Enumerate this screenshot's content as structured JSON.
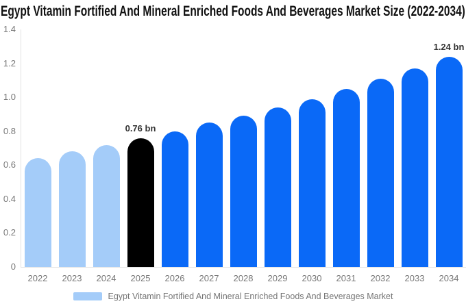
{
  "title": "Egypt Vitamin Fortified And Mineral Enriched Foods And Beverages Market Size (2022-2034)",
  "legend": {
    "label": "Egypt Vitamin Fortified And Mineral Enriched Foods And Beverages Market"
  },
  "colors": {
    "historical": "#A4CCF9",
    "base_year": "#000000",
    "forecast": "#0A69F7",
    "axis_line": "#E3E3E3",
    "tick_text": "#777777",
    "data_label_text": "#333333",
    "legend_text": "#757575",
    "title_text": "#111111"
  },
  "chart_data": {
    "type": "bar",
    "title": "Egypt Vitamin Fortified And Mineral Enriched Foods And Beverages Market Size (2022-2034)",
    "categories": [
      "2022",
      "2023",
      "2024",
      "2025",
      "2026",
      "2027",
      "2028",
      "2029",
      "2030",
      "2031",
      "2032",
      "2033",
      "2034"
    ],
    "values": [
      0.64,
      0.68,
      0.72,
      0.76,
      0.8,
      0.85,
      0.89,
      0.94,
      0.99,
      1.05,
      1.11,
      1.17,
      1.24
    ],
    "bar_roles": [
      "historical",
      "historical",
      "historical",
      "base_year",
      "forecast",
      "forecast",
      "forecast",
      "forecast",
      "forecast",
      "forecast",
      "forecast",
      "forecast",
      "forecast"
    ],
    "point_labels": [
      "",
      "",
      "",
      "0.76 bn",
      "",
      "",
      "",
      "",
      "",
      "",
      "",
      "",
      "1.24 bn"
    ],
    "xlabel": "",
    "ylabel": "",
    "ylim": [
      0,
      1.4
    ],
    "yticks": [
      "1.4",
      "1.2",
      "1.0",
      "0.8",
      "0.6",
      "0.4",
      "0.2",
      "0"
    ],
    "grid": false,
    "legend_position": "bottom",
    "legend_entries": [
      "Egypt Vitamin Fortified And Mineral Enriched Foods And Beverages Market"
    ]
  }
}
